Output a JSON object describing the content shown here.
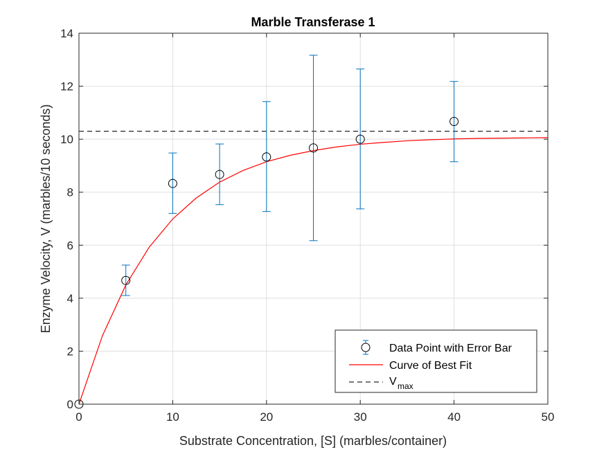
{
  "chart_data": {
    "type": "scatter",
    "title": "Marble Transferase 1",
    "xlabel": "Substrate Concentration, [S] (marbles/container)",
    "ylabel": "Enzyme Velocity, V (marbles/10 seconds)",
    "xlim": [
      0,
      50
    ],
    "ylim": [
      0,
      14
    ],
    "xticks": [
      0,
      10,
      20,
      30,
      40,
      50
    ],
    "yticks": [
      0,
      2,
      4,
      6,
      8,
      10,
      12,
      14
    ],
    "grid": true,
    "legend_position": "bottom-right",
    "series": [
      {
        "name": "Data Point with Error Bar",
        "kind": "errorbar",
        "color": "#0072BD",
        "marker_color": "#000000",
        "x": [
          0,
          5,
          10,
          15,
          20,
          25,
          30,
          40
        ],
        "y": [
          0,
          4.67,
          8.33,
          8.67,
          9.33,
          9.67,
          10.0,
          10.67
        ],
        "lower": [
          0,
          4.1,
          7.2,
          7.53,
          7.27,
          6.17,
          7.37,
          9.15
        ],
        "upper": [
          0,
          5.25,
          9.48,
          9.82,
          11.42,
          13.17,
          12.65,
          12.18
        ]
      },
      {
        "name": "Curve of Best Fit",
        "kind": "line",
        "color": "#FF0000",
        "x": [
          0,
          2.5,
          5,
          7.5,
          10,
          12.5,
          15,
          17.5,
          20,
          22.5,
          25,
          27.5,
          30,
          32.5,
          35,
          37.5,
          40,
          42.5,
          45,
          47.5,
          50
        ],
        "y": [
          0,
          2.58,
          4.5,
          5.93,
          6.99,
          7.78,
          8.38,
          8.82,
          9.15,
          9.39,
          9.57,
          9.71,
          9.81,
          9.88,
          9.94,
          9.98,
          10.01,
          10.03,
          10.04,
          10.05,
          10.06
        ]
      },
      {
        "name": "V",
        "name_subscript": "max",
        "kind": "hline",
        "color": "#262626",
        "dash": "dashed",
        "y": 10.3
      }
    ]
  }
}
